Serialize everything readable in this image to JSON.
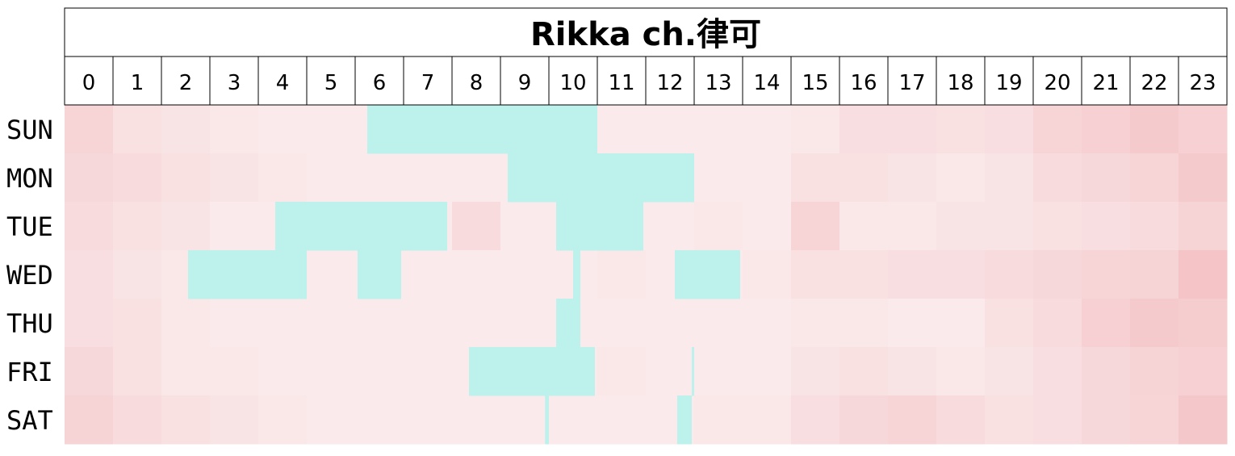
{
  "chart_data": {
    "type": "heatmap",
    "title": "Rikka ch.律可",
    "x_labels": [
      "0",
      "1",
      "2",
      "3",
      "4",
      "5",
      "6",
      "7",
      "8",
      "9",
      "10",
      "11",
      "12",
      "13",
      "14",
      "15",
      "16",
      "17",
      "18",
      "19",
      "20",
      "21",
      "22",
      "23"
    ],
    "y_labels": [
      "SUN",
      "MON",
      "TUE",
      "WED",
      "THU",
      "FRI",
      "SAT"
    ],
    "colors": {
      "low": "#fbf0f0",
      "high": "#f1b5b9",
      "live": "#bdf2ec",
      "grid": "#000000"
    },
    "live_blocks": [
      {
        "day": "SUN",
        "start": 6.25,
        "end": 11.0
      },
      {
        "day": "MON",
        "start": 9.15,
        "end": 13.0
      },
      {
        "day": "TUE",
        "start": 4.35,
        "end": 7.9
      },
      {
        "day": "TUE",
        "start": 10.15,
        "end": 11.95
      },
      {
        "day": "WED",
        "start": 2.55,
        "end": 5.0
      },
      {
        "day": "WED",
        "start": 6.05,
        "end": 6.95
      },
      {
        "day": "WED",
        "start": 10.5,
        "end": 10.65
      },
      {
        "day": "WED",
        "start": 12.6,
        "end": 13.95
      },
      {
        "day": "THU",
        "start": 10.15,
        "end": 10.65
      },
      {
        "day": "FRI",
        "start": 8.35,
        "end": 10.95
      },
      {
        "day": "FRI",
        "start": 12.95,
        "end": 13.0
      },
      {
        "day": "SAT",
        "start": 9.92,
        "end": 10.0
      },
      {
        "day": "SAT",
        "start": 12.65,
        "end": 12.95
      }
    ],
    "intensity": [
      [
        0.45,
        0.25,
        0.2,
        0.15,
        0.1,
        0.1,
        0.1,
        0.1,
        0.1,
        0.1,
        0.1,
        0.1,
        0.1,
        0.1,
        0.1,
        0.15,
        0.3,
        0.3,
        0.25,
        0.3,
        0.45,
        0.55,
        0.65,
        0.55
      ],
      [
        0.4,
        0.35,
        0.25,
        0.2,
        0.15,
        0.1,
        0.1,
        0.1,
        0.1,
        0.1,
        0.1,
        0.1,
        0.1,
        0.1,
        0.1,
        0.25,
        0.25,
        0.2,
        0.15,
        0.2,
        0.35,
        0.4,
        0.45,
        0.65
      ],
      [
        0.35,
        0.25,
        0.2,
        0.1,
        0.1,
        0.1,
        0.1,
        0.1,
        0.35,
        0.1,
        0.1,
        0.1,
        0.1,
        0.15,
        0.1,
        0.45,
        0.15,
        0.15,
        0.2,
        0.2,
        0.25,
        0.3,
        0.35,
        0.5
      ],
      [
        0.3,
        0.2,
        0.15,
        0.1,
        0.1,
        0.1,
        0.1,
        0.1,
        0.1,
        0.1,
        0.1,
        0.15,
        0.1,
        0.1,
        0.15,
        0.25,
        0.25,
        0.3,
        0.3,
        0.35,
        0.4,
        0.45,
        0.5,
        0.75
      ],
      [
        0.3,
        0.25,
        0.15,
        0.1,
        0.1,
        0.1,
        0.1,
        0.1,
        0.1,
        0.1,
        0.1,
        0.1,
        0.1,
        0.1,
        0.1,
        0.15,
        0.15,
        0.1,
        0.1,
        0.25,
        0.35,
        0.55,
        0.65,
        0.6
      ],
      [
        0.4,
        0.25,
        0.15,
        0.15,
        0.1,
        0.1,
        0.1,
        0.1,
        0.1,
        0.1,
        0.1,
        0.15,
        0.1,
        0.1,
        0.1,
        0.2,
        0.25,
        0.2,
        0.15,
        0.2,
        0.3,
        0.4,
        0.5,
        0.55
      ],
      [
        0.5,
        0.35,
        0.25,
        0.2,
        0.15,
        0.1,
        0.1,
        0.1,
        0.1,
        0.1,
        0.1,
        0.1,
        0.1,
        0.15,
        0.15,
        0.3,
        0.4,
        0.45,
        0.35,
        0.25,
        0.3,
        0.4,
        0.45,
        0.7
      ]
    ]
  }
}
